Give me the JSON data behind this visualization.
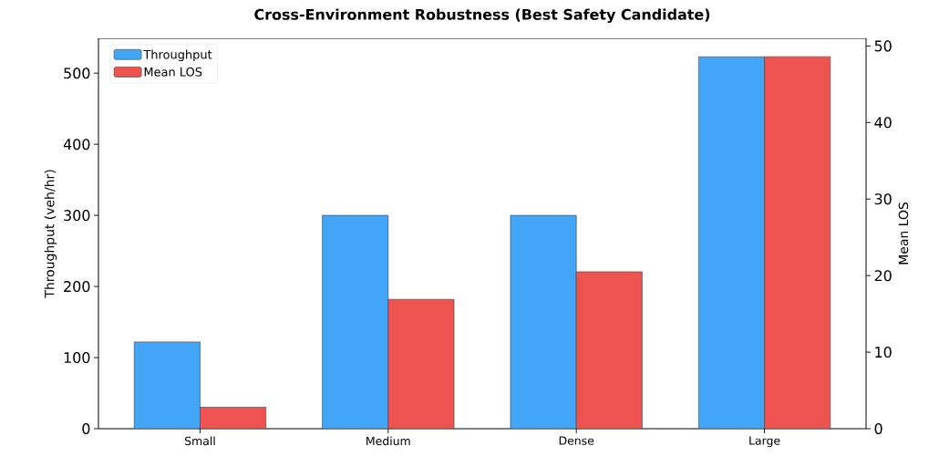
{
  "chart_data": {
    "type": "bar",
    "title": "Cross-Environment Robustness (Best Safety Candidate)",
    "categories": [
      "Small",
      "Medium",
      "Dense",
      "Large"
    ],
    "series": [
      {
        "name": "Throughput",
        "color": "#42a5f5",
        "values": [
          122,
          300,
          300,
          523
        ]
      },
      {
        "name": "Mean LOS",
        "color": "#ef5350",
        "values": [
          2.8,
          16.9,
          20.5,
          48.6
        ],
        "axis": "y2"
      }
    ],
    "ylabel": "Throughput (veh/hr)",
    "y2label": "Mean LOS",
    "ylim": [
      0,
      549
    ],
    "yticks": [
      0,
      100,
      200,
      300,
      400,
      500
    ],
    "y2lim": [
      0,
      51
    ],
    "y2ticks": [
      0,
      10,
      20,
      30,
      40,
      50
    ],
    "legend": "top left"
  }
}
